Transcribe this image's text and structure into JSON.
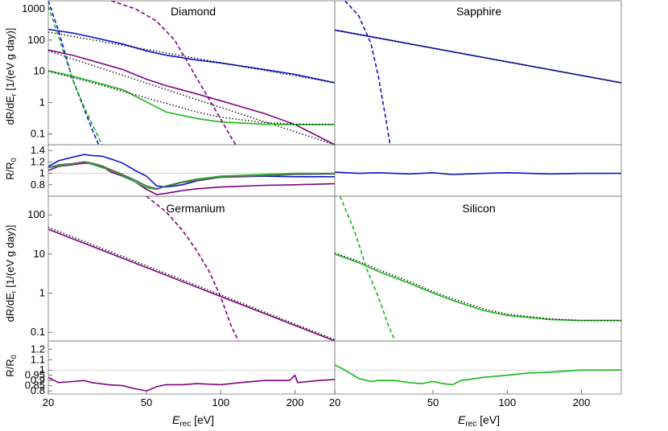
{
  "figure": {
    "xlabel_main": "E",
    "xlabel_sub": "rec",
    "xlabel_unit": " [eV]",
    "ylabel_rate": "dR/dE",
    "ylabel_rate_sub": "r",
    "ylabel_rate_unit": " [1/(eV g day)]",
    "ylabel_ratio_main": "R/R",
    "ylabel_ratio_sub": "0"
  },
  "colors": {
    "blue": "#1010d0",
    "purple": "#800080",
    "green": "#18b818",
    "black": "#000000",
    "gray": "#606060"
  },
  "chart_data": [
    {
      "type": "line",
      "title": "Diamond",
      "xscale": "log",
      "yscale": "log",
      "xlim": [
        20,
        290
      ],
      "ylim": [
        0.045,
        1800
      ],
      "x_ticks": [],
      "y_ticks": [
        0.1,
        1,
        10,
        100,
        1000
      ],
      "y_tick_labels": [
        "0.1",
        "1",
        "10",
        "100",
        "1000"
      ],
      "series": [
        {
          "color": "blue",
          "style": "solid",
          "x": [
            20,
            25,
            30,
            40,
            50,
            60,
            80,
            100,
            150,
            200,
            290
          ],
          "y": [
            220,
            170,
            125,
            75,
            45,
            33,
            23,
            18.5,
            11.5,
            8,
            4.3
          ]
        },
        {
          "color": "black",
          "style": "dotted",
          "x": [
            20,
            290
          ],
          "y": [
            180,
            4.3
          ]
        },
        {
          "color": "purple",
          "style": "solid",
          "x": [
            20,
            25,
            30,
            40,
            50,
            60,
            80,
            100,
            150,
            200,
            290
          ],
          "y": [
            48,
            33,
            22,
            11.5,
            5.6,
            3.5,
            1.9,
            1.15,
            0.45,
            0.2,
            0.045
          ]
        },
        {
          "color": "black",
          "style": "dotted",
          "x": [
            20,
            290
          ],
          "y": [
            45,
            0.045
          ]
        },
        {
          "color": "green",
          "style": "solid",
          "x": [
            20,
            25,
            30,
            40,
            50,
            60,
            80,
            100,
            150,
            200,
            290
          ],
          "y": [
            10.5,
            7,
            4.8,
            2.6,
            1.05,
            0.5,
            0.31,
            0.24,
            0.205,
            0.2,
            0.2
          ]
        },
        {
          "color": "black",
          "style": "dotted",
          "x": [
            20,
            25,
            30,
            40,
            50,
            60,
            80,
            100,
            150,
            200,
            290
          ],
          "y": [
            10,
            6.4,
            4.4,
            2.3,
            1.4,
            0.95,
            0.5,
            0.34,
            0.23,
            0.205,
            0.2
          ]
        },
        {
          "color": "blue",
          "style": "dashed",
          "x": [
            20,
            22,
            25,
            28,
            30,
            32
          ],
          "y": [
            1800,
            200,
            6,
            0.6,
            0.15,
            0.045
          ]
        },
        {
          "color": "green",
          "style": "dashed",
          "x": [
            20,
            22,
            25,
            28,
            30,
            33
          ],
          "y": [
            1200,
            130,
            6,
            0.7,
            0.22,
            0.045
          ]
        },
        {
          "color": "purple",
          "style": "dashed",
          "x": [
            36,
            45,
            55,
            65,
            80,
            95,
            110,
            115
          ],
          "y": [
            1800,
            1000,
            400,
            100,
            6,
            0.6,
            0.08,
            0.045
          ]
        }
      ]
    },
    {
      "type": "line",
      "title": "Sapphire",
      "xscale": "log",
      "yscale": "log",
      "xlim": [
        20,
        290
      ],
      "ylim": [
        0.045,
        1800
      ],
      "series": [
        {
          "color": "blue",
          "style": "solid",
          "x": [
            20,
            290
          ],
          "y": [
            210,
            4.3
          ]
        },
        {
          "color": "black",
          "style": "dotted",
          "x": [
            20,
            290
          ],
          "y": [
            205,
            4.3
          ]
        },
        {
          "color": "blue",
          "style": "dashed",
          "x": [
            22,
            25,
            28,
            30,
            32,
            33.5
          ],
          "y": [
            1800,
            600,
            80,
            7,
            0.4,
            0.045
          ]
        }
      ]
    },
    {
      "type": "line",
      "title": "",
      "xscale": "log",
      "yscale": "linear",
      "xlim": [
        20,
        290
      ],
      "ylim": [
        0.6,
        1.5
      ],
      "y_ticks": [
        0.8,
        1,
        1.2,
        1.4
      ],
      "y_tick_labels": [
        "0.8",
        "1",
        "1.2",
        "1.4"
      ],
      "series": [
        {
          "color": "blue",
          "style": "solid",
          "x": [
            20,
            22,
            25,
            28,
            30,
            33,
            36,
            40,
            45,
            50,
            55,
            60,
            70,
            80,
            100,
            150,
            200,
            290
          ],
          "y": [
            1.12,
            1.22,
            1.28,
            1.33,
            1.31,
            1.3,
            1.25,
            1.18,
            1.05,
            0.95,
            0.78,
            0.76,
            0.8,
            0.87,
            0.93,
            0.95,
            0.94,
            0.94
          ]
        },
        {
          "color": "purple",
          "style": "solid",
          "x": [
            20,
            22,
            25,
            28,
            30,
            33,
            36,
            40,
            45,
            50,
            55,
            60,
            70,
            80,
            100,
            150,
            200,
            290
          ],
          "y": [
            1.05,
            1.12,
            1.15,
            1.18,
            1.17,
            1.12,
            1.02,
            0.95,
            0.85,
            0.72,
            0.63,
            0.65,
            0.7,
            0.73,
            0.76,
            0.79,
            0.8,
            0.82
          ]
        },
        {
          "color": "green",
          "style": "solid",
          "x": [
            20,
            22,
            25,
            28,
            30,
            33,
            36,
            40,
            45,
            50,
            55,
            60,
            70,
            80,
            100,
            150,
            200,
            290
          ],
          "y": [
            1.1,
            1.13,
            1.16,
            1.2,
            1.16,
            1.1,
            1.05,
            0.96,
            0.85,
            0.75,
            0.72,
            0.78,
            0.85,
            0.9,
            0.95,
            0.98,
            1.0,
            1.0
          ]
        },
        {
          "color": "gray",
          "style": "solid",
          "x": [
            20,
            22,
            25,
            28,
            30,
            33,
            36,
            40,
            45,
            50,
            55,
            60,
            70,
            80,
            100,
            150,
            200,
            290
          ],
          "y": [
            1.1,
            1.15,
            1.17,
            1.2,
            1.18,
            1.13,
            1.06,
            0.98,
            0.88,
            0.78,
            0.73,
            0.77,
            0.84,
            0.88,
            0.93,
            0.96,
            0.98,
            0.99
          ]
        }
      ]
    },
    {
      "type": "line",
      "title": "",
      "xscale": "log",
      "yscale": "linear",
      "xlim": [
        20,
        290
      ],
      "ylim": [
        0.6,
        1.5
      ],
      "series": [
        {
          "color": "blue",
          "style": "solid",
          "x": [
            20,
            25,
            30,
            40,
            50,
            60,
            80,
            100,
            150,
            200,
            290
          ],
          "y": [
            1.02,
            1.0,
            1.01,
            0.99,
            1.01,
            0.98,
            1.0,
            1.01,
            0.99,
            1.0,
            1.0
          ]
        }
      ]
    },
    {
      "type": "line",
      "title": "Germanium",
      "xscale": "log",
      "yscale": "log",
      "xlim": [
        20,
        290
      ],
      "ylim": [
        0.06,
        300
      ],
      "y_ticks": [
        0.1,
        1,
        10,
        100
      ],
      "y_tick_labels": [
        "0.1",
        "1",
        "10",
        "100"
      ],
      "series": [
        {
          "color": "purple",
          "style": "solid",
          "x": [
            20,
            290
          ],
          "y": [
            43,
            0.06
          ]
        },
        {
          "color": "black",
          "style": "dotted",
          "x": [
            20,
            290
          ],
          "y": [
            48,
            0.065
          ]
        },
        {
          "color": "purple",
          "style": "dashed",
          "x": [
            50,
            60,
            70,
            80,
            90,
            100,
            110,
            118
          ],
          "y": [
            300,
            120,
            40,
            12,
            3.5,
            0.8,
            0.15,
            0.06
          ]
        }
      ]
    },
    {
      "type": "line",
      "title": "Silicon",
      "xscale": "log",
      "yscale": "log",
      "xlim": [
        20,
        290
      ],
      "ylim": [
        0.06,
        300
      ],
      "series": [
        {
          "color": "green",
          "style": "solid",
          "x": [
            20,
            25,
            30,
            40,
            50,
            60,
            80,
            100,
            150,
            200,
            290
          ],
          "y": [
            10,
            6,
            3.6,
            1.8,
            1.0,
            0.65,
            0.36,
            0.27,
            0.21,
            0.2,
            0.2
          ]
        },
        {
          "color": "black",
          "style": "dotted",
          "x": [
            20,
            25,
            30,
            40,
            50,
            60,
            80,
            100,
            150,
            200,
            290
          ],
          "y": [
            10.5,
            6.5,
            4.0,
            2.0,
            1.1,
            0.72,
            0.4,
            0.29,
            0.22,
            0.2,
            0.2
          ]
        },
        {
          "color": "green",
          "style": "dashed",
          "x": [
            21,
            24,
            27,
            30,
            33,
            35
          ],
          "y": [
            300,
            40,
            4,
            0.8,
            0.15,
            0.06
          ]
        }
      ]
    },
    {
      "type": "line",
      "title": "",
      "xscale": "log",
      "yscale": "linear",
      "xlim": [
        20,
        290
      ],
      "ylim": [
        0.77,
        1.28
      ],
      "x_ticks": [
        20,
        50,
        100,
        200
      ],
      "x_tick_labels": [
        "20",
        "50",
        "100",
        "200"
      ],
      "y_ticks": [
        0.8,
        0.85,
        0.9,
        0.95,
        1,
        1.1,
        1.2
      ],
      "y_tick_labels": [
        "0.8",
        "0.85",
        "0.9",
        "0.95",
        "1",
        "1.1",
        "1.2"
      ],
      "series": [
        {
          "color": "purple",
          "style": "solid",
          "x": [
            20,
            22,
            25,
            28,
            30,
            35,
            40,
            45,
            50,
            55,
            60,
            70,
            80,
            100,
            120,
            150,
            190,
            200,
            205,
            250,
            290
          ],
          "y": [
            0.93,
            0.88,
            0.89,
            0.9,
            0.88,
            0.86,
            0.85,
            0.82,
            0.8,
            0.84,
            0.86,
            0.86,
            0.87,
            0.86,
            0.88,
            0.9,
            0.9,
            0.95,
            0.88,
            0.9,
            0.91
          ]
        }
      ]
    },
    {
      "type": "line",
      "title": "",
      "xscale": "log",
      "yscale": "linear",
      "xlim": [
        20,
        290
      ],
      "ylim": [
        0.77,
        1.28
      ],
      "x_ticks": [
        20,
        50,
        100,
        200
      ],
      "x_tick_labels": [
        "20",
        "50",
        "100",
        "200"
      ],
      "series": [
        {
          "color": "green",
          "style": "solid",
          "x": [
            20,
            22,
            25,
            28,
            30,
            35,
            40,
            45,
            50,
            55,
            60,
            65,
            70,
            80,
            100,
            120,
            150,
            200,
            290
          ],
          "y": [
            1.05,
            1.0,
            0.92,
            0.89,
            0.9,
            0.9,
            0.88,
            0.87,
            0.89,
            0.87,
            0.86,
            0.9,
            0.91,
            0.93,
            0.95,
            0.97,
            0.98,
            1.0,
            1.0
          ]
        }
      ]
    }
  ]
}
